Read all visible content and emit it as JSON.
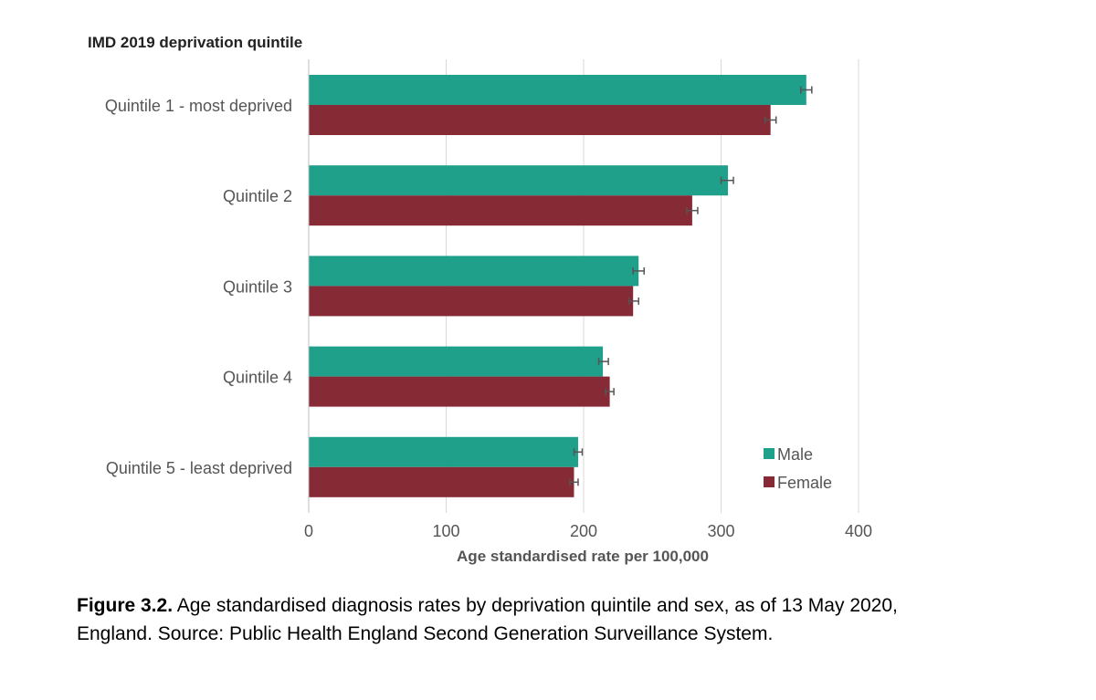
{
  "chart_data": {
    "type": "bar",
    "orientation": "horizontal",
    "title": "IMD 2019 deprivation quintile",
    "xlabel": "Age standardised rate per 100,000",
    "xlim": [
      0,
      400
    ],
    "xticks": [
      0,
      100,
      200,
      300,
      400
    ],
    "grid": true,
    "legend_position": "bottom-right",
    "categories": [
      "Quintile 1 - most deprived",
      "Quintile 2",
      "Quintile 3",
      "Quintile 4",
      "Quintile 5 - least deprived"
    ],
    "series": [
      {
        "name": "Male",
        "color": "#1fa08a",
        "values": [
          362,
          305,
          240,
          214,
          196
        ],
        "error_low": [
          358,
          300,
          236,
          211,
          193
        ],
        "error_high": [
          366,
          309,
          244,
          218,
          199
        ]
      },
      {
        "name": "Female",
        "color": "#862a35",
        "values": [
          336,
          279,
          236,
          219,
          193
        ],
        "error_low": [
          332,
          275,
          233,
          216,
          190
        ],
        "error_high": [
          340,
          283,
          240,
          222,
          196
        ]
      }
    ]
  },
  "caption": {
    "label": "Figure 3.2.",
    "text": " Age standardised diagnosis rates by deprivation quintile and sex, as of 13 May 2020, England. Source: Public Health England Second Generation Surveillance System."
  }
}
